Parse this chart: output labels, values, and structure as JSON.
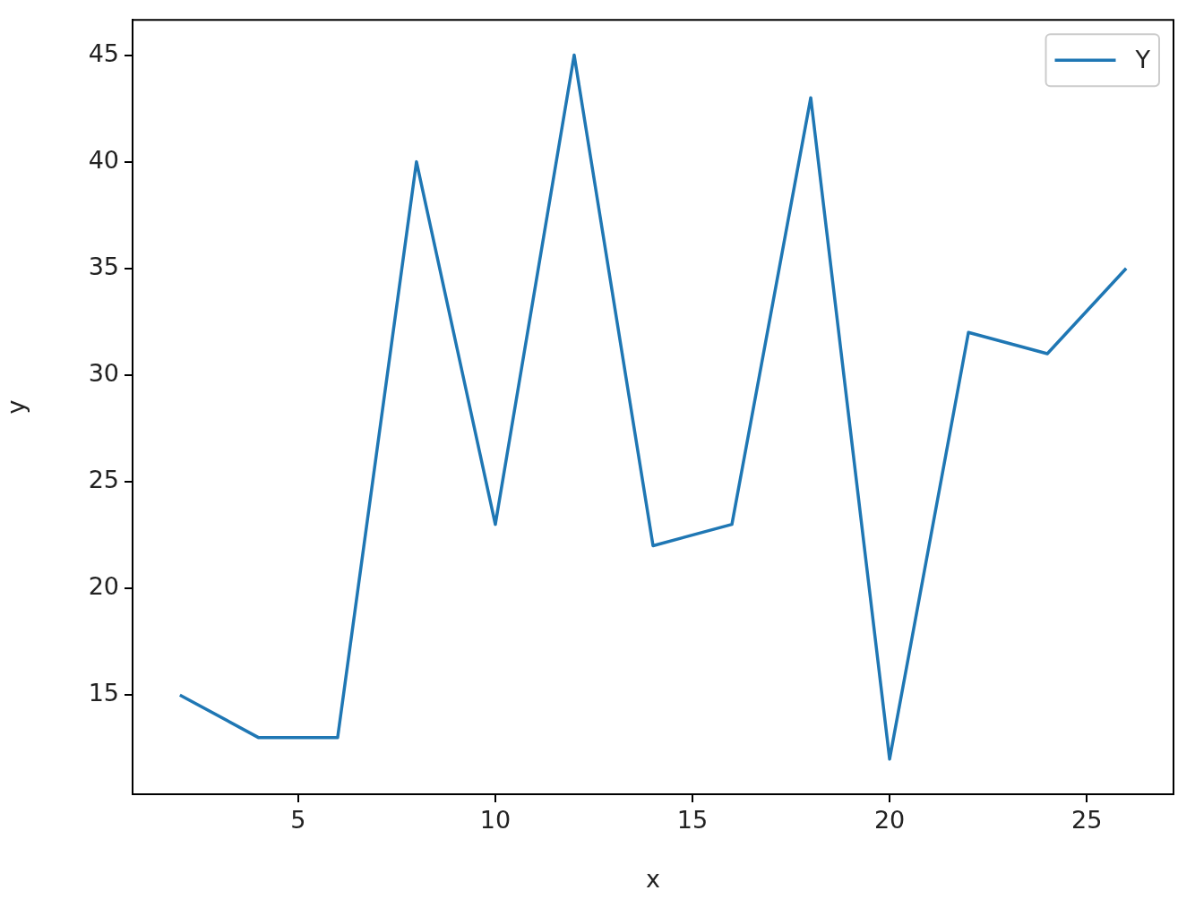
{
  "chart_data": {
    "type": "line",
    "xlabel": "x",
    "ylabel": "y",
    "x": [
      2,
      4,
      6,
      8,
      10,
      12,
      14,
      16,
      18,
      20,
      22,
      24,
      26
    ],
    "series": [
      {
        "name": "Y",
        "color": "#1f77b4",
        "values": [
          15,
          13,
          13,
          40,
          23,
          45,
          22,
          23,
          43,
          12,
          32,
          31,
          35
        ]
      }
    ],
    "xlim": [
      0.8,
      27.2
    ],
    "xticks": [
      5,
      10,
      15,
      20,
      25
    ],
    "ylim": [
      10.35,
      46.65
    ],
    "yticks": [
      15,
      20,
      25,
      30,
      35,
      40,
      45
    ],
    "grid": false,
    "legend": "top right",
    "marker": "none",
    "line_style": "solid"
  }
}
